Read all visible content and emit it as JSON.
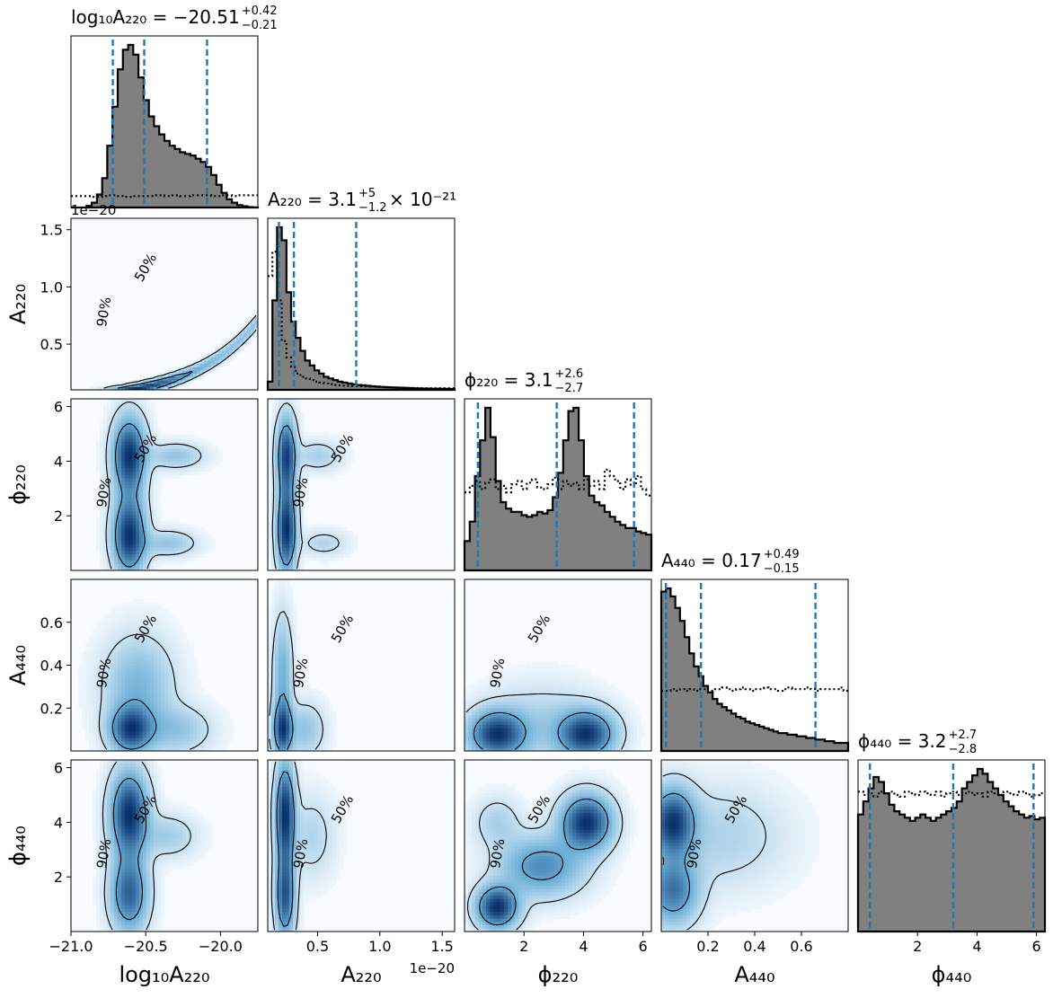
{
  "chart_data": {
    "type": "corner",
    "parameters": [
      {
        "key": "log10A220",
        "axis_label": "log₁₀A₂₂₀",
        "title": "log₁₀A₂₂₀ = −20.51",
        "title_sup": "+0.42",
        "title_sub": "−0.21",
        "title_tail": "",
        "range": [
          -21.0,
          -19.75
        ],
        "ticks": [
          -21.0,
          -20.5,
          -20.0
        ],
        "tick_labels": [
          "−21.0",
          "−20.5",
          "−20.0"
        ],
        "offset_text": "",
        "quantiles": [
          -20.72,
          -20.51,
          -20.09
        ]
      },
      {
        "key": "A220",
        "axis_label": "A₂₂₀",
        "title": "A₂₂₀ = 3.1",
        "title_sup": "+5",
        "title_sub": "−1.2",
        "title_tail": " × 10⁻²¹",
        "range": [
          0.1,
          1.6
        ],
        "ticks": [
          0.5,
          1.0,
          1.5
        ],
        "tick_labels": [
          "0.5",
          "1.0",
          "1.5"
        ],
        "offset_text": "1e−20",
        "quantiles": [
          0.19,
          0.31,
          0.81
        ]
      },
      {
        "key": "phi220",
        "axis_label": "ϕ₂₂₀",
        "title": "ϕ₂₂₀ = 3.1",
        "title_sup": "+2.6",
        "title_sub": "−2.7",
        "title_tail": "",
        "range": [
          0.0,
          6.283
        ],
        "ticks": [
          2,
          4,
          6
        ],
        "tick_labels": [
          "2",
          "4",
          "6"
        ],
        "offset_text": "",
        "quantiles": [
          0.45,
          3.1,
          5.7
        ]
      },
      {
        "key": "A440",
        "axis_label": "A₄₄₀",
        "title": "A₄₄₀ = 0.17",
        "title_sup": "+0.49",
        "title_sub": "−0.15",
        "title_tail": "",
        "range": [
          0.0,
          0.8
        ],
        "ticks": [
          0.2,
          0.4,
          0.6
        ],
        "tick_labels": [
          "0.2",
          "0.4",
          "0.6"
        ],
        "offset_text": "",
        "quantiles": [
          0.02,
          0.17,
          0.66
        ]
      },
      {
        "key": "phi440",
        "axis_label": "ϕ₄₄₀",
        "title": "ϕ₄₄₀ = 3.2",
        "title_sup": "+2.7",
        "title_sub": "−2.8",
        "title_tail": "",
        "range": [
          0.0,
          6.283
        ],
        "ticks": [
          2,
          4,
          6
        ],
        "tick_labels": [
          "2",
          "4",
          "6"
        ],
        "offset_text": "",
        "quantiles": [
          0.4,
          3.2,
          5.9
        ]
      }
    ],
    "row_y_ticks": [
      null,
      {
        "ticks": [
          0.5,
          1.0,
          1.5
        ],
        "tick_labels": [
          "0.5",
          "1.0",
          "1.5"
        ],
        "offset_text": "1e−20"
      },
      {
        "ticks": [
          2,
          4,
          6
        ],
        "tick_labels": [
          "2",
          "4",
          "6"
        ],
        "offset_text": ""
      },
      {
        "ticks": [
          0.2,
          0.4,
          0.6
        ],
        "tick_labels": [
          "0.2",
          "0.4",
          "0.6"
        ],
        "offset_text": ""
      },
      {
        "ticks": [
          2,
          4,
          6
        ],
        "tick_labels": [
          "2",
          "4",
          "6"
        ],
        "offset_text": ""
      }
    ],
    "histograms": [
      {
        "posterior": [
          0,
          0,
          0,
          0.01,
          0.03,
          0.08,
          0.18,
          0.38,
          0.62,
          0.85,
          0.97,
          1.0,
          0.94,
          0.8,
          0.66,
          0.56,
          0.5,
          0.45,
          0.41,
          0.38,
          0.36,
          0.34,
          0.33,
          0.32,
          0.3,
          0.28,
          0.25,
          0.2,
          0.14,
          0.09,
          0.05,
          0.03,
          0.015,
          0.008,
          0.003,
          0.001
        ],
        "prior": [
          0.07,
          0.07,
          0.07,
          0.07,
          0.065,
          0.065,
          0.07,
          0.075,
          0.075,
          0.07,
          0.065,
          0.065,
          0.07,
          0.07,
          0.07,
          0.07,
          0.075,
          0.075,
          0.07,
          0.075,
          0.075,
          0.07,
          0.07,
          0.075,
          0.075,
          0.075,
          0.075,
          0.07,
          0.07,
          0.075,
          0.075,
          0.07,
          0.075,
          0.075,
          0.075,
          0.075
        ]
      },
      {
        "posterior": [
          0.05,
          0.55,
          1.0,
          0.92,
          0.6,
          0.42,
          0.32,
          0.24,
          0.18,
          0.15,
          0.12,
          0.1,
          0.08,
          0.07,
          0.06,
          0.05,
          0.045,
          0.04,
          0.035,
          0.03,
          0.028,
          0.025,
          0.022,
          0.02,
          0.018,
          0.016,
          0.015,
          0.014,
          0.013,
          0.012,
          0.011,
          0.01,
          0.009,
          0.008,
          0.008,
          0.007,
          0.007,
          0.006,
          0.006,
          0.005
        ],
        "prior": [
          0.7,
          0.85,
          0.55,
          0.3,
          0.2,
          0.14,
          0.1,
          0.08,
          0.07,
          0.06,
          0.05,
          0.045,
          0.04,
          0.035,
          0.03,
          0.028,
          0.026,
          0.025,
          0.024,
          0.023,
          0.022,
          0.021,
          0.02,
          0.019,
          0.018,
          0.017,
          0.016,
          0.015,
          0.014,
          0.013,
          0.012,
          0.011,
          0.01,
          0.01,
          0.01,
          0.01,
          0.01,
          0.01,
          0.01,
          0.01
        ]
      },
      {
        "posterior": [
          0.18,
          0.3,
          0.58,
          0.8,
          1.0,
          0.82,
          0.55,
          0.42,
          0.38,
          0.36,
          0.36,
          0.34,
          0.33,
          0.34,
          0.36,
          0.35,
          0.37,
          0.45,
          0.6,
          0.8,
          0.98,
          1.0,
          0.8,
          0.58,
          0.46,
          0.42,
          0.4,
          0.36,
          0.33,
          0.3,
          0.28,
          0.26,
          0.26,
          0.24,
          0.23,
          0.22
        ],
        "prior": [
          0.48,
          0.52,
          0.55,
          0.5,
          0.54,
          0.56,
          0.5,
          0.52,
          0.48,
          0.53,
          0.55,
          0.5,
          0.54,
          0.56,
          0.51,
          0.5,
          0.53,
          0.57,
          0.5,
          0.55,
          0.52,
          0.54,
          0.5,
          0.56,
          0.52,
          0.55,
          0.5,
          0.62,
          0.58,
          0.55,
          0.5,
          0.56,
          0.52,
          0.58,
          0.5,
          0.46
        ]
      },
      {
        "posterior": [
          0.98,
          1.0,
          0.95,
          0.88,
          0.8,
          0.7,
          0.6,
          0.52,
          0.46,
          0.4,
          0.36,
          0.32,
          0.29,
          0.27,
          0.25,
          0.23,
          0.21,
          0.2,
          0.18,
          0.17,
          0.16,
          0.15,
          0.14,
          0.13,
          0.12,
          0.11,
          0.11,
          0.1,
          0.1,
          0.09,
          0.09,
          0.08,
          0.08,
          0.07,
          0.07,
          0.06,
          0.06,
          0.05,
          0.05,
          0.05
        ],
        "prior": [
          0.37,
          0.37,
          0.38,
          0.37,
          0.38,
          0.37,
          0.38,
          0.37,
          0.38,
          0.38,
          0.37,
          0.38,
          0.38,
          0.39,
          0.38,
          0.37,
          0.38,
          0.39,
          0.38,
          0.37,
          0.38,
          0.38,
          0.39,
          0.38,
          0.38,
          0.37,
          0.38,
          0.39,
          0.38,
          0.38,
          0.38,
          0.39,
          0.38,
          0.37,
          0.38,
          0.38,
          0.38,
          0.38,
          0.39,
          0.37
        ]
      },
      {
        "posterior": [
          0.72,
          0.8,
          0.88,
          0.95,
          0.92,
          0.85,
          0.78,
          0.74,
          0.72,
          0.7,
          0.68,
          0.7,
          0.72,
          0.7,
          0.68,
          0.7,
          0.72,
          0.74,
          0.76,
          0.8,
          0.88,
          0.92,
          0.96,
          1.0,
          0.97,
          0.92,
          0.88,
          0.84,
          0.8,
          0.77,
          0.74,
          0.72,
          0.7,
          0.71,
          0.69,
          0.7
        ],
        "prior": [
          0.86,
          0.84,
          0.85,
          0.83,
          0.86,
          0.85,
          0.86,
          0.84,
          0.83,
          0.86,
          0.85,
          0.84,
          0.86,
          0.85,
          0.84,
          0.86,
          0.83,
          0.85,
          0.86,
          0.84,
          0.85,
          0.86,
          0.84,
          0.85,
          0.83,
          0.86,
          0.85,
          0.84,
          0.86,
          0.85,
          0.84,
          0.86,
          0.85,
          0.83,
          0.84,
          0.85
        ]
      }
    ],
    "contour_labels": [
      "50%",
      "90%"
    ],
    "colors": {
      "posterior_fill": "#808080",
      "outline": "#000000",
      "quantile_line": "#1f77b4",
      "density_peak": "#08306b",
      "density_mid": "#6baed6",
      "density_low": "#f7fbff"
    }
  }
}
